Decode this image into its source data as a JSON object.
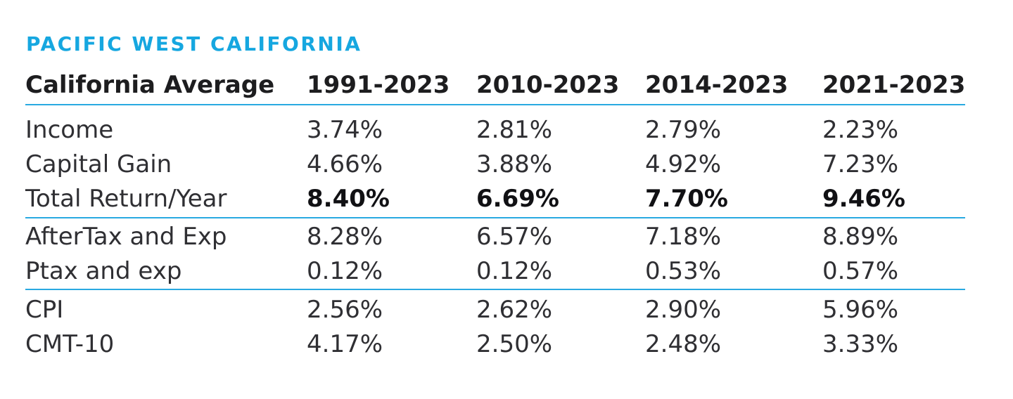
{
  "heading": "PACIFIC WEST CALIFORNIA",
  "columns": [
    "California Average",
    "1991-2023",
    "2010-2023",
    "2014-2023",
    "2021-2023"
  ],
  "groups": [
    [
      {
        "label": "Income",
        "values": [
          "3.74%",
          "2.81%",
          "2.79%",
          "2.23%"
        ],
        "bold": false
      },
      {
        "label": "Capital Gain",
        "values": [
          "4.66%",
          "3.88%",
          "4.92%",
          "7.23%"
        ],
        "bold": false
      },
      {
        "label": "Total Return/Year",
        "values": [
          "8.40%",
          "6.69%",
          "7.70%",
          "9.46%"
        ],
        "bold": true
      }
    ],
    [
      {
        "label": "AfterTax and Exp",
        "values": [
          "8.28%",
          "6.57%",
          "7.18%",
          "8.89%"
        ],
        "bold": false
      },
      {
        "label": "Ptax and exp",
        "values": [
          "0.12%",
          "0.12%",
          "0.53%",
          "0.57%"
        ],
        "bold": false
      }
    ],
    [
      {
        "label": "CPI",
        "values": [
          "2.56%",
          "2.62%",
          "2.90%",
          "5.96%"
        ],
        "bold": false
      },
      {
        "label": "CMT-10",
        "values": [
          "4.17%",
          "2.50%",
          "2.48%",
          "3.33%"
        ],
        "bold": false
      }
    ]
  ],
  "colors": {
    "accent": "#16a7e0",
    "rule": "#29a9e1",
    "text": "#1d1d1f"
  }
}
